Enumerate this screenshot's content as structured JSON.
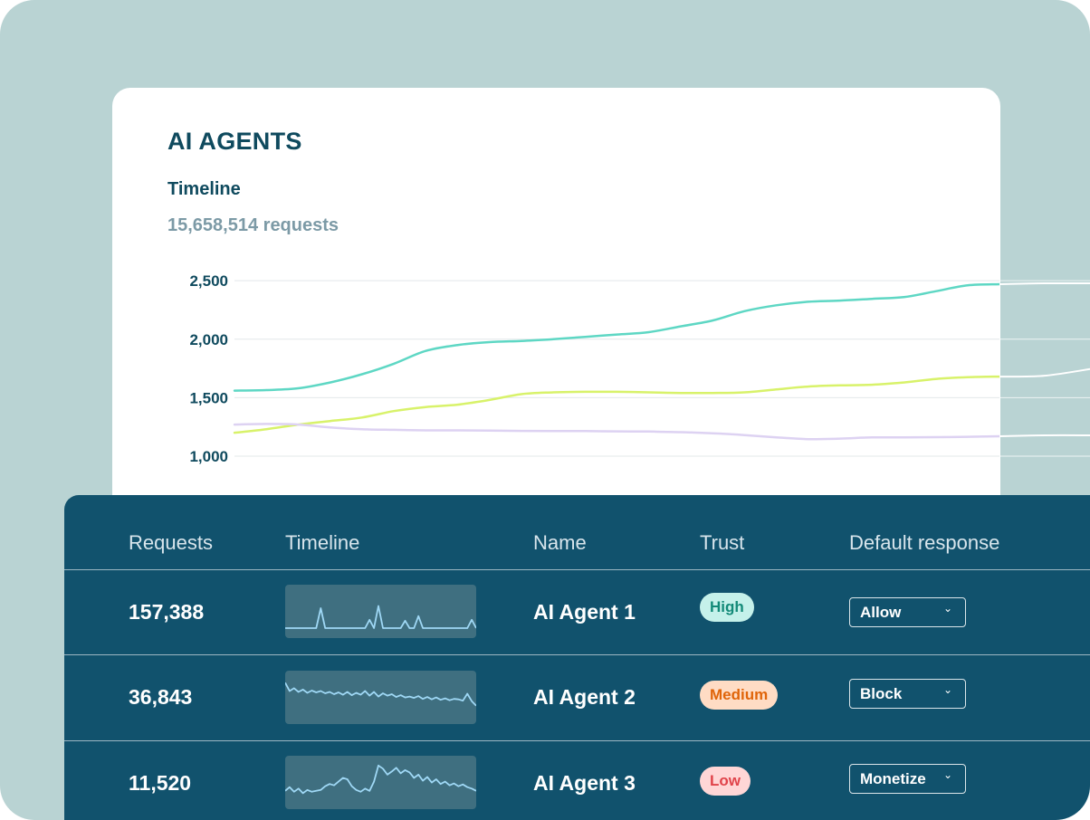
{
  "card": {
    "title": "AI AGENTS",
    "subtitle": "Timeline",
    "total": "15,658,514 requests"
  },
  "chart_data": {
    "type": "line",
    "title": "Timeline",
    "ylim": [
      930,
      2540
    ],
    "yticks": [
      1000,
      1500,
      2000,
      2500
    ],
    "ytick_labels": [
      "1,000",
      "1,500",
      "2,000",
      "2,500"
    ],
    "x_count": 25,
    "grid": true,
    "series": [
      {
        "name": "AI Agent 1",
        "color": "#5ed7c4",
        "values": [
          1560,
          1565,
          1580,
          1630,
          1700,
          1790,
          1900,
          1950,
          1975,
          1985,
          2000,
          2020,
          2040,
          2060,
          2110,
          2160,
          2240,
          2290,
          2320,
          2330,
          2345,
          2360,
          2410,
          2460,
          2470
        ]
      },
      {
        "name": "AI Agent 2",
        "color": "#d8f26a",
        "values": [
          1200,
          1230,
          1270,
          1300,
          1330,
          1385,
          1420,
          1440,
          1480,
          1530,
          1545,
          1550,
          1550,
          1545,
          1540,
          1540,
          1545,
          1570,
          1595,
          1605,
          1610,
          1630,
          1660,
          1675,
          1680
        ]
      },
      {
        "name": "AI Agent 3",
        "color": "#ddd2f2",
        "values": [
          1270,
          1275,
          1270,
          1245,
          1230,
          1225,
          1220,
          1220,
          1218,
          1216,
          1215,
          1214,
          1212,
          1210,
          1205,
          1195,
          1180,
          1160,
          1145,
          1150,
          1160,
          1160,
          1162,
          1165,
          1170
        ]
      }
    ],
    "continuation_color": "#ffffff"
  },
  "table": {
    "headers": {
      "requests": "Requests",
      "timeline": "Timeline",
      "name": "Name",
      "trust": "Trust",
      "response": "Default response"
    },
    "rows": [
      {
        "requests": "157,388",
        "name": "AI Agent 1",
        "trust": "High",
        "response": "Allow",
        "spark": [
          2,
          2,
          2,
          2,
          2,
          2,
          2,
          2,
          45,
          2,
          2,
          2,
          2,
          2,
          2,
          2,
          2,
          2,
          2,
          20,
          2,
          50,
          2,
          2,
          2,
          2,
          2,
          18,
          2,
          2,
          28,
          2,
          2,
          2,
          2,
          2,
          2,
          2,
          2,
          2,
          2,
          2,
          20,
          2
        ]
      },
      {
        "requests": "36,843",
        "name": "AI Agent 2",
        "trust": "Medium",
        "response": "Block",
        "spark": [
          70,
          52,
          58,
          50,
          55,
          48,
          53,
          49,
          52,
          47,
          50,
          45,
          49,
          44,
          50,
          43,
          48,
          44,
          52,
          42,
          50,
          40,
          47,
          42,
          45,
          39,
          43,
          38,
          40,
          37,
          41,
          35,
          39,
          34,
          38,
          33,
          36,
          32,
          35,
          34,
          31,
          46,
          30,
          20
        ]
      },
      {
        "requests": "11,520",
        "name": "AI Agent 3",
        "trust": "Low",
        "response": "Monetize",
        "spark": [
          20,
          28,
          18,
          25,
          15,
          22,
          18,
          20,
          22,
          30,
          35,
          32,
          40,
          48,
          45,
          30,
          22,
          18,
          25,
          20,
          40,
          75,
          68,
          55,
          62,
          70,
          58,
          65,
          60,
          48,
          55,
          42,
          50,
          38,
          45,
          35,
          40,
          32,
          36,
          30,
          34,
          28,
          25,
          20
        ]
      }
    ]
  },
  "colors": {
    "frame_bg": "#b9d3d3",
    "panel_bg": "#11526d",
    "high_bg": "#c5f1ea",
    "high_fg": "#138a78",
    "medium_bg": "#ffdcc4",
    "medium_fg": "#e0650a",
    "low_bg": "#ffd6d6",
    "low_fg": "#e0434a"
  },
  "icons": {
    "dropdown": "chevron-down-icon"
  }
}
